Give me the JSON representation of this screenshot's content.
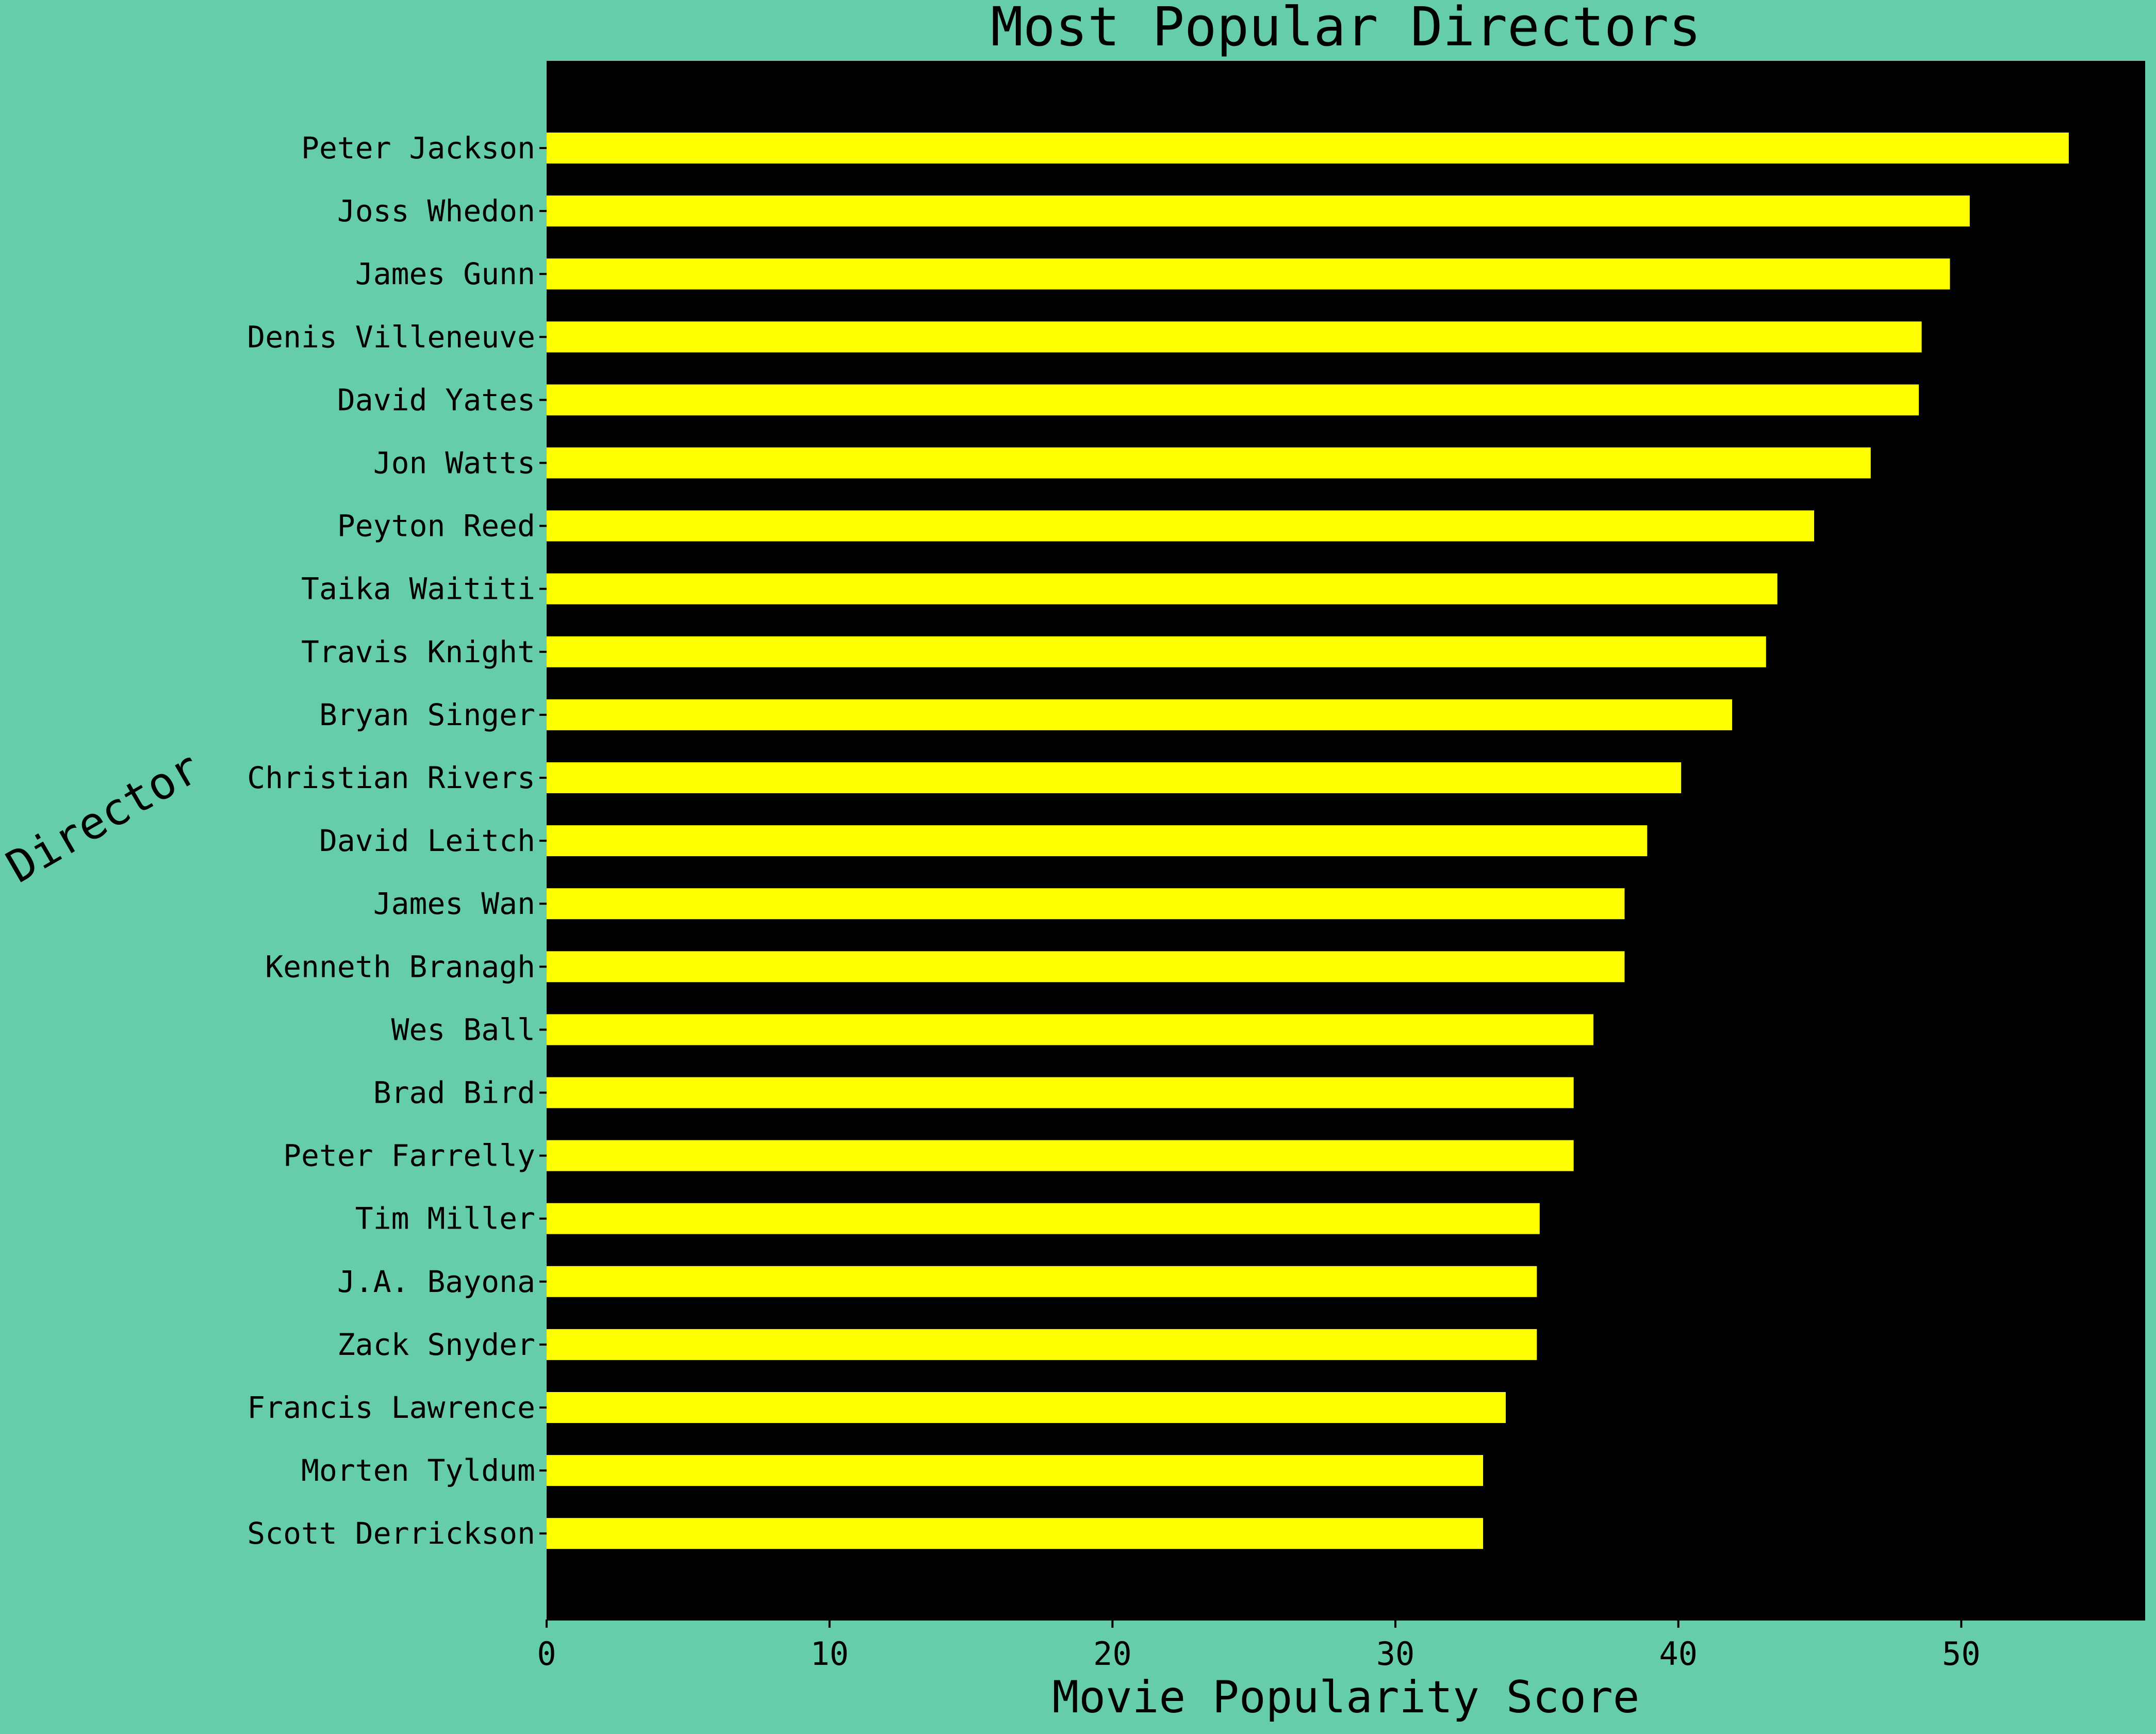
{
  "chart_data": {
    "type": "bar",
    "orientation": "horizontal",
    "title": "Most Popular Directors",
    "xlabel": "Movie Popularity Score",
    "ylabel": "Director",
    "categories": [
      "Peter Jackson",
      "Joss Whedon",
      "James Gunn",
      "Denis Villeneuve",
      "David Yates",
      "Jon Watts",
      "Peyton Reed",
      "Taika Waititi",
      "Travis Knight",
      "Bryan Singer",
      "Christian Rivers",
      "David Leitch",
      "James Wan",
      "Kenneth Branagh",
      "Wes Ball",
      "Brad Bird",
      "Peter Farrelly",
      "Tim Miller",
      "J.A. Bayona",
      "Zack Snyder",
      "Francis Lawrence",
      "Morten Tyldum",
      "Scott Derrickson"
    ],
    "values": [
      53.8,
      50.3,
      49.6,
      48.6,
      48.5,
      46.8,
      44.8,
      43.5,
      43.1,
      41.9,
      40.1,
      38.9,
      38.1,
      38.1,
      37.0,
      36.3,
      36.3,
      35.1,
      35.0,
      35.0,
      33.9,
      33.1,
      33.1
    ],
    "xlim": [
      0,
      56.5
    ],
    "xticks": [
      0,
      10,
      20,
      30,
      40,
      50
    ],
    "grid": false,
    "legend": "none",
    "colors": {
      "background": "#66cdaa",
      "plot_background": "#000000",
      "bar": "#ffff00",
      "text": "#000000"
    }
  }
}
